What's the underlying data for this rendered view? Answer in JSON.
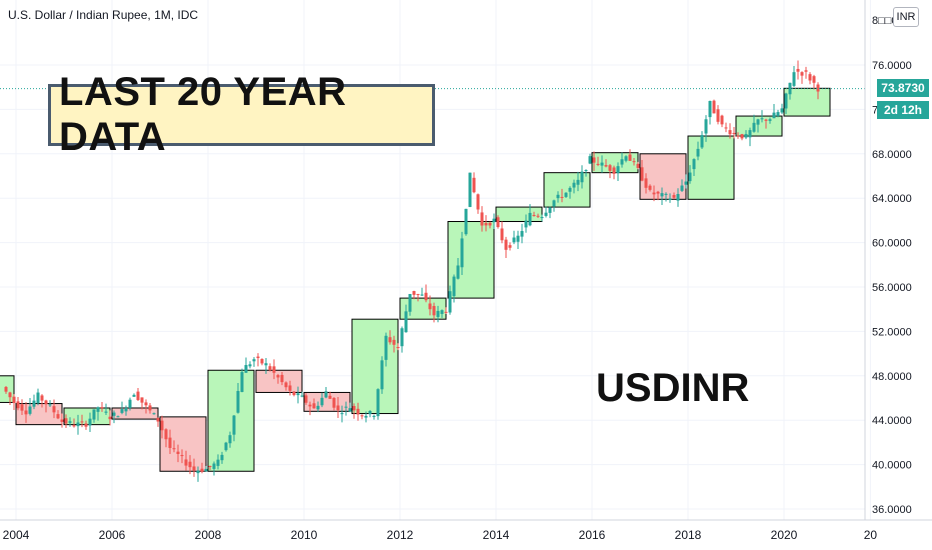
{
  "header": {
    "title": "U.S. Dollar / Indian Rupee, 1M, IDC"
  },
  "annotations": {
    "banner": "LAST 20 YEAR DATA",
    "symbol": "USDINR"
  },
  "price_axis": {
    "currency": "INR",
    "last_price": "73.8730",
    "countdown": "2d 12h",
    "top_partial_label": "8□□0"
  },
  "colors": {
    "up": "#26a69a",
    "down": "#ef5350",
    "up_box": "#b9f6b9",
    "down_box": "#f8c4c4",
    "grid": "#f0f3fa",
    "axis_text": "#131722",
    "price_line": "#26a69a"
  },
  "chart_data": {
    "type": "candlestick",
    "title": "U.S. Dollar / Indian Rupee, 1M, IDC",
    "ylim": [
      35,
      80
    ],
    "xlim": [
      2003.7,
      2021.3
    ],
    "y_ticks": [
      "36.0000",
      "40.0000",
      "44.0000",
      "48.0000",
      "52.0000",
      "56.0000",
      "60.0000",
      "64.0000",
      "68.0000",
      "72.0000",
      "76.0000"
    ],
    "x_ticks": [
      "2004",
      "2006",
      "2008",
      "2010",
      "2012",
      "2014",
      "2016",
      "2018",
      "2020",
      "20"
    ],
    "x_tick_values": [
      2004,
      2006,
      2008,
      2010,
      2012,
      2014,
      2016,
      2018,
      2020,
      2021.8
    ],
    "last_price": 73.873,
    "yearly_boxes": [
      {
        "year": 2003,
        "open": 45.6,
        "close": 48.0
      },
      {
        "year": 2004,
        "open": 45.5,
        "close": 43.6
      },
      {
        "year": 2005,
        "open": 43.6,
        "close": 45.1
      },
      {
        "year": 2006,
        "open": 45.1,
        "close": 44.1
      },
      {
        "year": 2007,
        "open": 44.3,
        "close": 39.4
      },
      {
        "year": 2008,
        "open": 39.4,
        "close": 48.5
      },
      {
        "year": 2009,
        "open": 48.5,
        "close": 46.5
      },
      {
        "year": 2010,
        "open": 46.5,
        "close": 44.8
      },
      {
        "year": 2011,
        "open": 44.6,
        "close": 53.1
      },
      {
        "year": 2012,
        "open": 53.1,
        "close": 55.0
      },
      {
        "year": 2013,
        "open": 55.0,
        "close": 61.9
      },
      {
        "year": 2014,
        "open": 61.9,
        "close": 63.2
      },
      {
        "year": 2015,
        "open": 63.2,
        "close": 66.3
      },
      {
        "year": 2016,
        "open": 66.3,
        "close": 68.1
      },
      {
        "year": 2017,
        "open": 68.0,
        "close": 63.9
      },
      {
        "year": 2018,
        "open": 63.9,
        "close": 69.6
      },
      {
        "year": 2019,
        "open": 69.6,
        "close": 71.4
      },
      {
        "year": 2020,
        "open": 71.4,
        "close": 73.9
      }
    ],
    "monthly_closes": [
      {
        "t": 2003.75,
        "c": 47.0
      },
      {
        "t": 2004.0,
        "c": 45.6
      },
      {
        "t": 2004.25,
        "c": 44.8
      },
      {
        "t": 2004.5,
        "c": 46.2
      },
      {
        "t": 2004.75,
        "c": 45.2
      },
      {
        "t": 2005.0,
        "c": 43.9
      },
      {
        "t": 2005.25,
        "c": 43.6
      },
      {
        "t": 2005.5,
        "c": 43.7
      },
      {
        "t": 2005.75,
        "c": 45.2
      },
      {
        "t": 2006.0,
        "c": 44.3
      },
      {
        "t": 2006.25,
        "c": 44.8
      },
      {
        "t": 2006.5,
        "c": 46.5
      },
      {
        "t": 2006.75,
        "c": 45.2
      },
      {
        "t": 2007.0,
        "c": 44.0
      },
      {
        "t": 2007.25,
        "c": 41.5
      },
      {
        "t": 2007.5,
        "c": 40.5
      },
      {
        "t": 2007.75,
        "c": 39.5
      },
      {
        "t": 2008.0,
        "c": 39.6
      },
      {
        "t": 2008.25,
        "c": 40.2
      },
      {
        "t": 2008.5,
        "c": 42.8
      },
      {
        "t": 2008.75,
        "c": 48.5
      },
      {
        "t": 2009.0,
        "c": 49.5
      },
      {
        "t": 2009.25,
        "c": 49.0
      },
      {
        "t": 2009.5,
        "c": 47.8
      },
      {
        "t": 2009.75,
        "c": 46.5
      },
      {
        "t": 2010.0,
        "c": 46.0
      },
      {
        "t": 2010.25,
        "c": 45.0
      },
      {
        "t": 2010.5,
        "c": 46.5
      },
      {
        "t": 2010.75,
        "c": 44.8
      },
      {
        "t": 2011.0,
        "c": 45.2
      },
      {
        "t": 2011.25,
        "c": 44.5
      },
      {
        "t": 2011.5,
        "c": 44.6
      },
      {
        "t": 2011.75,
        "c": 51.5
      },
      {
        "t": 2012.0,
        "c": 50.5
      },
      {
        "t": 2012.25,
        "c": 55.5
      },
      {
        "t": 2012.5,
        "c": 55.2
      },
      {
        "t": 2012.75,
        "c": 53.5
      },
      {
        "t": 2013.0,
        "c": 54.0
      },
      {
        "t": 2013.25,
        "c": 58.0
      },
      {
        "t": 2013.5,
        "c": 66.0
      },
      {
        "t": 2013.75,
        "c": 61.5
      },
      {
        "t": 2014.0,
        "c": 62.0
      },
      {
        "t": 2014.25,
        "c": 59.5
      },
      {
        "t": 2014.5,
        "c": 60.5
      },
      {
        "t": 2014.75,
        "c": 62.5
      },
      {
        "t": 2015.0,
        "c": 62.5
      },
      {
        "t": 2015.25,
        "c": 63.8
      },
      {
        "t": 2015.5,
        "c": 64.5
      },
      {
        "t": 2015.75,
        "c": 65.5
      },
      {
        "t": 2016.0,
        "c": 67.5
      },
      {
        "t": 2016.25,
        "c": 67.0
      },
      {
        "t": 2016.5,
        "c": 66.5
      },
      {
        "t": 2016.75,
        "c": 68.0
      },
      {
        "t": 2017.0,
        "c": 66.5
      },
      {
        "t": 2017.25,
        "c": 64.5
      },
      {
        "t": 2017.5,
        "c": 64.2
      },
      {
        "t": 2017.75,
        "c": 64.0
      },
      {
        "t": 2018.0,
        "c": 65.5
      },
      {
        "t": 2018.25,
        "c": 68.5
      },
      {
        "t": 2018.5,
        "c": 72.5
      },
      {
        "t": 2018.75,
        "c": 70.5
      },
      {
        "t": 2019.0,
        "c": 69.8
      },
      {
        "t": 2019.25,
        "c": 69.5
      },
      {
        "t": 2019.5,
        "c": 71.0
      },
      {
        "t": 2019.75,
        "c": 71.2
      },
      {
        "t": 2020.0,
        "c": 72.0
      },
      {
        "t": 2020.25,
        "c": 75.5
      },
      {
        "t": 2020.5,
        "c": 75.2
      },
      {
        "t": 2020.75,
        "c": 73.9
      }
    ]
  }
}
